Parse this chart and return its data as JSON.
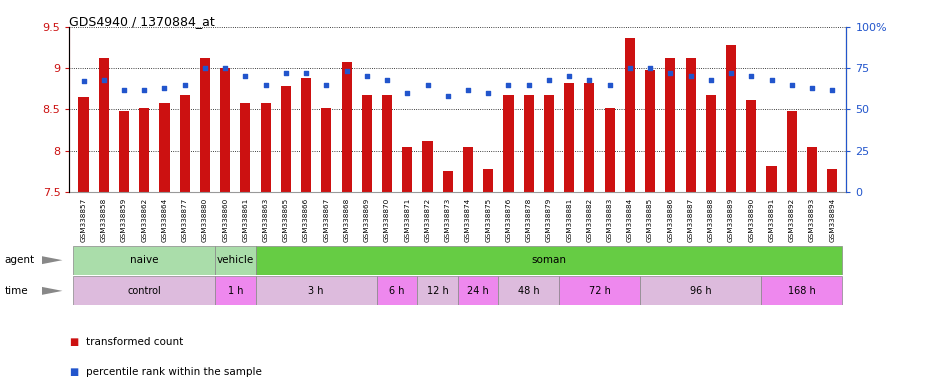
{
  "title": "GDS4940 / 1370884_at",
  "samples": [
    "GSM338857",
    "GSM338858",
    "GSM338859",
    "GSM338862",
    "GSM338864",
    "GSM338877",
    "GSM338880",
    "GSM338860",
    "GSM338861",
    "GSM338863",
    "GSM338865",
    "GSM338866",
    "GSM338867",
    "GSM338868",
    "GSM338869",
    "GSM338870",
    "GSM338871",
    "GSM338872",
    "GSM338873",
    "GSM338874",
    "GSM338875",
    "GSM338876",
    "GSM338878",
    "GSM338879",
    "GSM338881",
    "GSM338882",
    "GSM338883",
    "GSM338884",
    "GSM338885",
    "GSM338886",
    "GSM338887",
    "GSM338888",
    "GSM338889",
    "GSM338890",
    "GSM338891",
    "GSM338892",
    "GSM338893",
    "GSM338894"
  ],
  "bar_values": [
    8.65,
    9.12,
    8.48,
    8.52,
    8.58,
    8.67,
    9.12,
    9.0,
    8.58,
    8.58,
    8.78,
    8.88,
    8.52,
    9.07,
    8.68,
    8.67,
    8.04,
    8.12,
    7.75,
    8.05,
    7.78,
    8.68,
    8.67,
    8.68,
    8.82,
    8.82,
    8.52,
    9.37,
    8.98,
    9.12,
    9.12,
    8.68,
    9.28,
    8.62,
    7.82,
    8.48,
    8.05,
    7.78
  ],
  "dot_values_pct": [
    67,
    68,
    62,
    62,
    63,
    65,
    75,
    75,
    70,
    65,
    72,
    72,
    65,
    73,
    70,
    68,
    60,
    65,
    58,
    62,
    60,
    65,
    65,
    68,
    70,
    68,
    65,
    75,
    75,
    72,
    70,
    68,
    72,
    70,
    68,
    65,
    63,
    62
  ],
  "bar_color": "#cc1111",
  "dot_color": "#2255cc",
  "agent_groups": [
    {
      "label": "naive",
      "start": 0,
      "end": 7,
      "color": "#aaddaa"
    },
    {
      "label": "vehicle",
      "start": 7,
      "end": 9,
      "color": "#aaddaa"
    },
    {
      "label": "soman",
      "start": 9,
      "end": 38,
      "color": "#66cc44"
    }
  ],
  "time_groups": [
    {
      "label": "control",
      "start": 0,
      "end": 7,
      "color": "#ddbbdd"
    },
    {
      "label": "1 h",
      "start": 7,
      "end": 9,
      "color": "#ee88ee"
    },
    {
      "label": "3 h",
      "start": 9,
      "end": 15,
      "color": "#ddbbdd"
    },
    {
      "label": "6 h",
      "start": 15,
      "end": 17,
      "color": "#ee88ee"
    },
    {
      "label": "12 h",
      "start": 17,
      "end": 19,
      "color": "#ddbbdd"
    },
    {
      "label": "24 h",
      "start": 19,
      "end": 21,
      "color": "#ee88ee"
    },
    {
      "label": "48 h",
      "start": 21,
      "end": 24,
      "color": "#ddbbdd"
    },
    {
      "label": "72 h",
      "start": 24,
      "end": 28,
      "color": "#ee88ee"
    },
    {
      "label": "96 h",
      "start": 28,
      "end": 34,
      "color": "#ddbbdd"
    },
    {
      "label": "168 h",
      "start": 34,
      "end": 38,
      "color": "#ee88ee"
    }
  ],
  "fig_width": 9.25,
  "fig_height": 3.84,
  "dpi": 100
}
